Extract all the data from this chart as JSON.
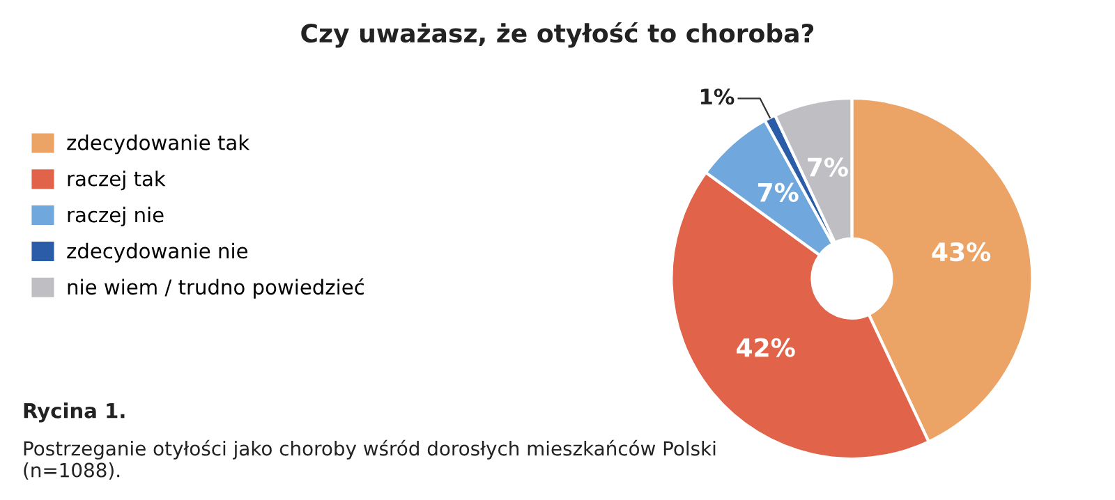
{
  "chart_data": {
    "type": "donut",
    "title": "Czy uważasz, że otyłość to choroba?",
    "categories": [
      "zdecydowanie tak",
      "raczej tak",
      "raczej nie",
      "zdecydowanie nie",
      "nie wiem / trudno powiedzieć"
    ],
    "values": [
      43,
      42,
      7,
      1,
      7
    ],
    "colors": [
      "#eba466",
      "#e0634a",
      "#70a7dc",
      "#2a5ca8",
      "#bfbfc3"
    ],
    "value_labels": [
      "43%",
      "42%",
      "7%",
      "1%",
      "7%"
    ],
    "legend": "left",
    "annotations": [
      "Rycina 1.",
      "Postrzeganie otyłości jako choroby wśród dorosłych mieszkańców Polski (n=1088)."
    ]
  }
}
